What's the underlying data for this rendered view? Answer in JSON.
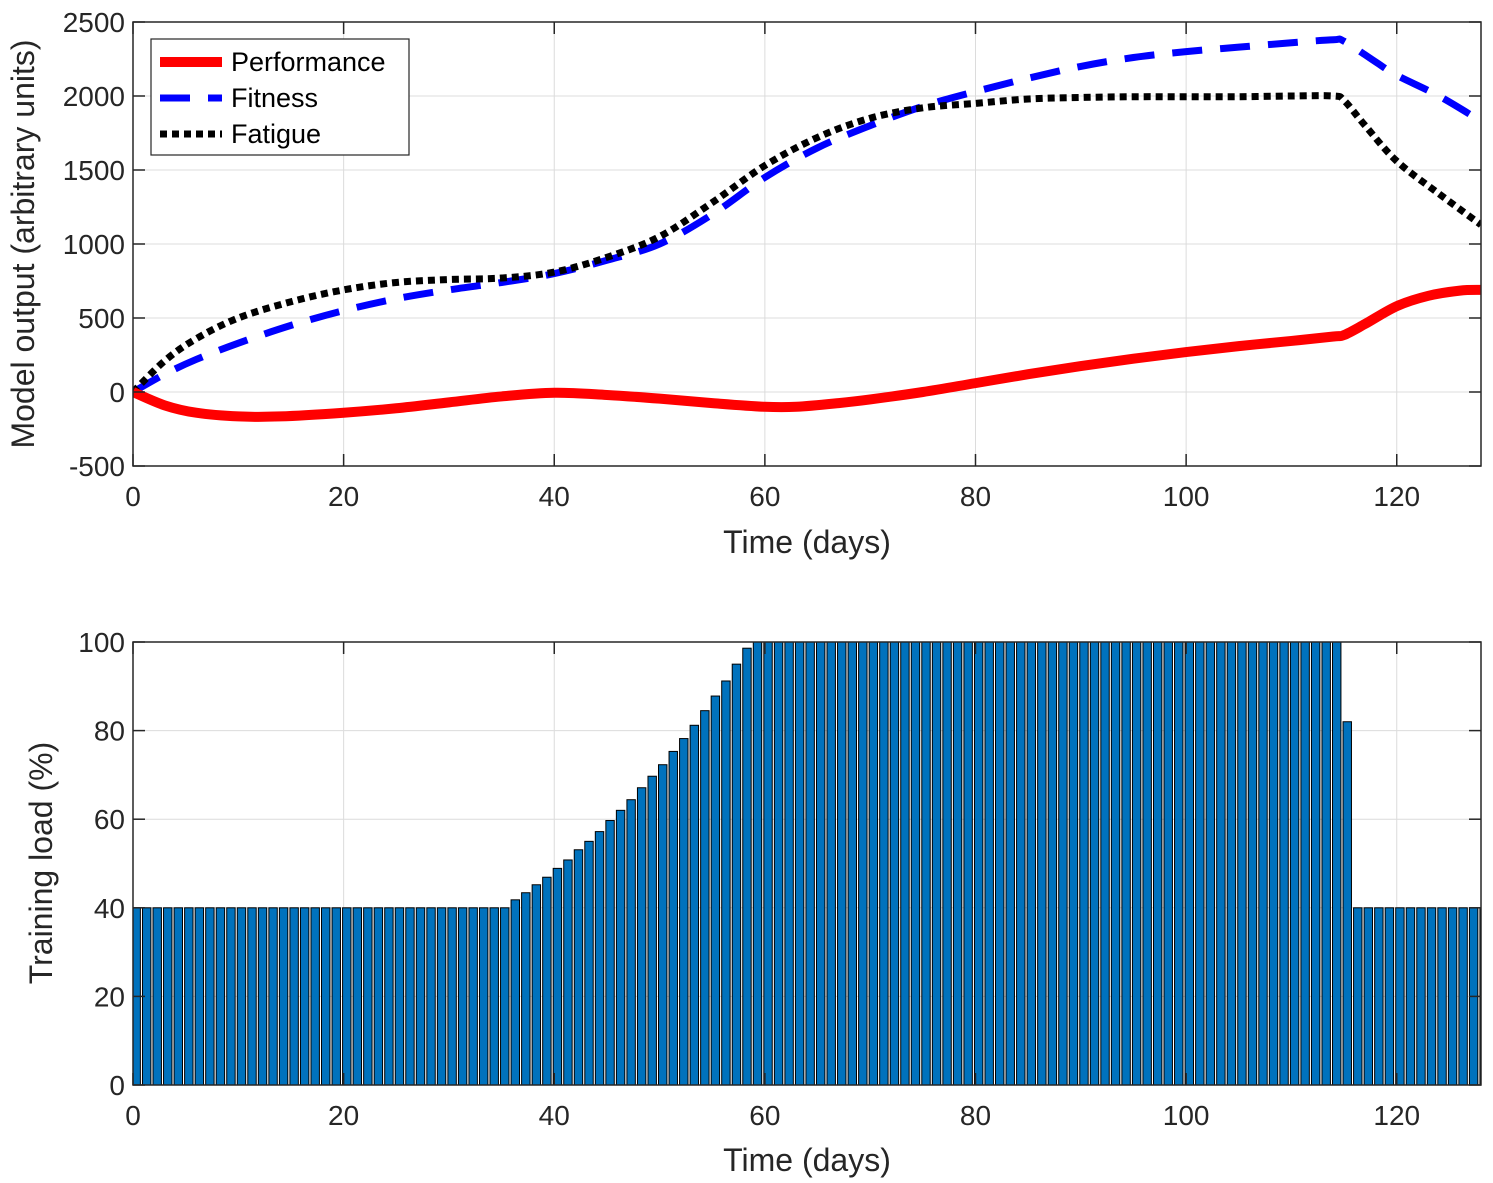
{
  "chart_data": [
    {
      "type": "line",
      "xlabel": "Time (days)",
      "ylabel": "Model output (arbitrary units)",
      "xlim": [
        0,
        128
      ],
      "ylim": [
        -500,
        2500
      ],
      "xticks": [
        0,
        20,
        40,
        60,
        80,
        100,
        120
      ],
      "yticks": [
        -500,
        0,
        500,
        1000,
        1500,
        2000,
        2500
      ],
      "grid": true,
      "legend_placement": "top-left",
      "series": [
        {
          "name": "Performance",
          "color": "#FF0000",
          "style": "solid",
          "x": [
            0,
            3,
            6,
            10,
            14,
            20,
            25,
            30,
            35,
            40,
            45,
            50,
            55,
            60,
            63,
            67,
            70,
            75,
            80,
            85,
            90,
            95,
            100,
            105,
            110,
            114,
            115,
            117,
            120,
            123,
            126,
            128
          ],
          "y": [
            0,
            -90,
            -140,
            -165,
            -165,
            -140,
            -110,
            -70,
            -30,
            -5,
            -20,
            -45,
            -75,
            -100,
            -100,
            -75,
            -50,
            0,
            60,
            120,
            175,
            225,
            270,
            310,
            345,
            375,
            385,
            460,
            580,
            650,
            685,
            690
          ]
        },
        {
          "name": "Fitness",
          "color": "#0000FF",
          "style": "dashed",
          "x": [
            0,
            3,
            6,
            10,
            15,
            20,
            25,
            30,
            35,
            40,
            45,
            50,
            55,
            60,
            65,
            70,
            75,
            80,
            85,
            90,
            95,
            100,
            105,
            110,
            114,
            115,
            118,
            120,
            124,
            128
          ],
          "y": [
            0,
            120,
            220,
            330,
            450,
            550,
            630,
            690,
            740,
            800,
            890,
            1000,
            1200,
            1450,
            1650,
            1800,
            1930,
            2030,
            2120,
            2200,
            2260,
            2300,
            2330,
            2360,
            2380,
            2370,
            2230,
            2140,
            2000,
            1830
          ]
        },
        {
          "name": "Fatigue",
          "color": "#000000",
          "style": "dotted",
          "x": [
            0,
            3,
            6,
            10,
            15,
            20,
            25,
            30,
            35,
            40,
            45,
            50,
            55,
            60,
            65,
            70,
            75,
            80,
            85,
            90,
            95,
            100,
            105,
            110,
            114,
            115,
            117,
            120,
            124,
            128
          ],
          "y": [
            0,
            210,
            360,
            500,
            610,
            690,
            740,
            760,
            770,
            810,
            910,
            1050,
            1280,
            1530,
            1720,
            1850,
            1920,
            1950,
            1980,
            1990,
            1995,
            1995,
            1995,
            2000,
            2000,
            1970,
            1800,
            1560,
            1340,
            1130
          ]
        }
      ]
    },
    {
      "type": "bar",
      "xlabel": "Time (days)",
      "ylabel": "Training load (%)",
      "xlim": [
        0,
        128
      ],
      "ylim": [
        0,
        100
      ],
      "xticks": [
        0,
        20,
        40,
        60,
        80,
        100,
        120
      ],
      "yticks": [
        0,
        20,
        40,
        60,
        80,
        100
      ],
      "grid": true,
      "bar_color": "#0072BD",
      "x_start": 0,
      "values": [
        40,
        40,
        40,
        40,
        40,
        40,
        40,
        40,
        40,
        40,
        40,
        40,
        40,
        40,
        40,
        40,
        40,
        40,
        40,
        40,
        40,
        40,
        40,
        40,
        40,
        40,
        40,
        40,
        40,
        40,
        40,
        40,
        40,
        40,
        40,
        40,
        41.8,
        43.4,
        45.2,
        46.9,
        48.9,
        50.8,
        53.1,
        55.0,
        57.2,
        59.7,
        62.0,
        64.4,
        67.1,
        69.7,
        72.3,
        75.3,
        78.2,
        81.2,
        84.5,
        87.8,
        91.2,
        95.0,
        98.6,
        100,
        100,
        100,
        100,
        100,
        100,
        100,
        100,
        100,
        100,
        100,
        100,
        100,
        100,
        100,
        100,
        100,
        100,
        100,
        100,
        100,
        100,
        100,
        100,
        100,
        100,
        100,
        100,
        100,
        100,
        100,
        100,
        100,
        100,
        100,
        100,
        100,
        100,
        100,
        100,
        100,
        100,
        100,
        100,
        100,
        100,
        100,
        100,
        100,
        100,
        100,
        100,
        100,
        100,
        100,
        100,
        82,
        40,
        40,
        40,
        40,
        40,
        40,
        40,
        40,
        40,
        40,
        40,
        40,
        40
      ]
    }
  ]
}
